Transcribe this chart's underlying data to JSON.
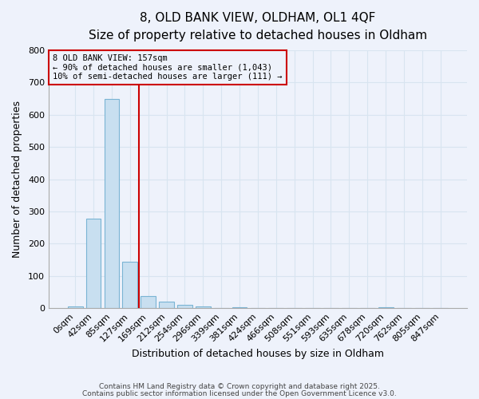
{
  "title1": "8, OLD BANK VIEW, OLDHAM, OL1 4QF",
  "title2": "Size of property relative to detached houses in Oldham",
  "xlabel": "Distribution of detached houses by size in Oldham",
  "ylabel": "Number of detached properties",
  "bar_labels": [
    "0sqm",
    "42sqm",
    "85sqm",
    "127sqm",
    "169sqm",
    "212sqm",
    "254sqm",
    "296sqm",
    "339sqm",
    "381sqm",
    "424sqm",
    "466sqm",
    "508sqm",
    "551sqm",
    "593sqm",
    "635sqm",
    "678sqm",
    "720sqm",
    "762sqm",
    "805sqm",
    "847sqm"
  ],
  "bar_values": [
    5,
    278,
    650,
    143,
    37,
    20,
    10,
    5,
    0,
    3,
    0,
    0,
    0,
    0,
    0,
    0,
    0,
    2,
    0,
    0,
    0
  ],
  "bar_color": "#c8dff0",
  "bar_edgecolor": "#7ab4d4",
  "vline_x": 3.5,
  "vline_color": "#cc0000",
  "annotation_line1": "8 OLD BANK VIEW: 157sqm",
  "annotation_line2": "← 90% of detached houses are smaller (1,043)",
  "annotation_line3": "10% of semi-detached houses are larger (111) →",
  "box_edgecolor": "#cc0000",
  "footer1": "Contains HM Land Registry data © Crown copyright and database right 2025.",
  "footer2": "Contains public sector information licensed under the Open Government Licence v3.0.",
  "ylim": [
    0,
    800
  ],
  "yticks": [
    0,
    100,
    200,
    300,
    400,
    500,
    600,
    700,
    800
  ],
  "bg_color": "#eef2fb",
  "grid_color": "#d8e4f0",
  "title_fontsize": 11,
  "subtitle_fontsize": 9,
  "axis_fontsize": 9,
  "tick_fontsize": 8
}
